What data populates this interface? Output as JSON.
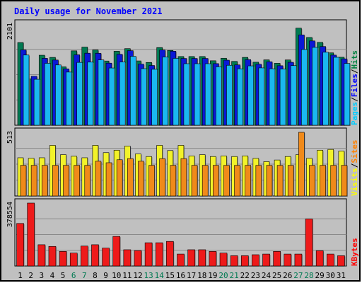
{
  "chart_data": {
    "type": "bar",
    "title": "Daily usage for November 2021",
    "categories": [
      "1",
      "2",
      "3",
      "4",
      "5",
      "6",
      "7",
      "8",
      "9",
      "10",
      "11",
      "12",
      "13",
      "14",
      "15",
      "16",
      "17",
      "18",
      "19",
      "20",
      "21",
      "22",
      "23",
      "24",
      "25",
      "26",
      "27",
      "28",
      "29",
      "30",
      "31"
    ],
    "weekend_days": [
      "6",
      "7",
      "13",
      "14",
      "20",
      "21",
      "27",
      "28"
    ],
    "panels": [
      {
        "name": "pages-files-hits",
        "max_label": "2101",
        "ymax": 2101,
        "legend": [
          {
            "label": "Pages",
            "color": "#00ccff"
          },
          {
            "label": "Files",
            "color": "#0000ff"
          },
          {
            "label": "Hits",
            "color": "#008040"
          }
        ],
        "series": [
          {
            "name": "Hits",
            "color": "#007a52",
            "values": [
              1717,
              963,
              1454,
              1409,
              1213,
              1545,
              1623,
              1564,
              1334,
              1537,
              1591,
              1336,
              1304,
              1613,
              1554,
              1427,
              1427,
              1427,
              1339,
              1392,
              1326,
              1409,
              1309,
              1358,
              1287,
              1356,
              2016,
              1823,
              1721,
              1503,
              1412
            ]
          },
          {
            "name": "Files",
            "color": "#0a18d6",
            "values": [
              1565,
              1017,
              1390,
              1354,
              1171,
              1463,
              1496,
              1495,
              1290,
              1473,
              1549,
              1269,
              1241,
              1562,
              1538,
              1387,
              1387,
              1387,
              1280,
              1351,
              1253,
              1362,
              1266,
              1318,
              1236,
              1307,
              1875,
              1751,
              1635,
              1456,
              1378
            ]
          },
          {
            "name": "Pages",
            "color": "#1ab8f0",
            "values": [
              1458,
              954,
              1286,
              1252,
              1104,
              1305,
              1311,
              1357,
              1189,
              1313,
              1431,
              1175,
              1162,
              1416,
              1389,
              1278,
              1278,
              1278,
              1213,
              1245,
              1172,
              1233,
              1191,
              1173,
              1166,
              1238,
              1573,
              1617,
              1516,
              1411,
              1284
            ]
          }
        ]
      },
      {
        "name": "visits-sites",
        "max_label": "513",
        "ymax": 513,
        "legend": [
          {
            "label": "Visits",
            "color": "#ffff00"
          },
          {
            "label": "Sites",
            "color": "#ff8000"
          }
        ],
        "series": [
          {
            "name": "Visits",
            "color": "#f2f22a",
            "values": [
              308,
              304,
              308,
              408,
              333,
              320,
              308,
              408,
              349,
              369,
              402,
              339,
              318,
              408,
              366,
              408,
              323,
              333,
              318,
              323,
              318,
              323,
              303,
              277,
              290,
              318,
              333,
              304,
              369,
              375,
              362
            ]
          },
          {
            "name": "Sites",
            "color": "#f08a1a",
            "values": [
              247,
              247,
              247,
              247,
              247,
              247,
              247,
              280,
              268,
              292,
              301,
              280,
              247,
              301,
              247,
              301,
              247,
              247,
              247,
              247,
              247,
              247,
              247,
              247,
              247,
              247,
              513,
              247,
              247,
              247,
              247
            ]
          }
        ]
      },
      {
        "name": "kbytes",
        "max_label": "378554",
        "ymax": 378554,
        "legend": [
          {
            "label": "KBytes",
            "color": "#ff0000"
          }
        ],
        "series": [
          {
            "name": "KBytes",
            "color": "#ee1a1a",
            "values": [
              256000,
              378554,
              128000,
              118000,
              88000,
              78000,
              120000,
              128000,
              108000,
              178000,
              98000,
              93000,
              140000,
              140000,
              148000,
              72000,
              98000,
              98000,
              88000,
              78000,
              62000,
              62000,
              68000,
              72000,
              88000,
              72000,
              72000,
              283000,
              92000,
              72000,
              62000
            ]
          }
        ]
      }
    ]
  }
}
